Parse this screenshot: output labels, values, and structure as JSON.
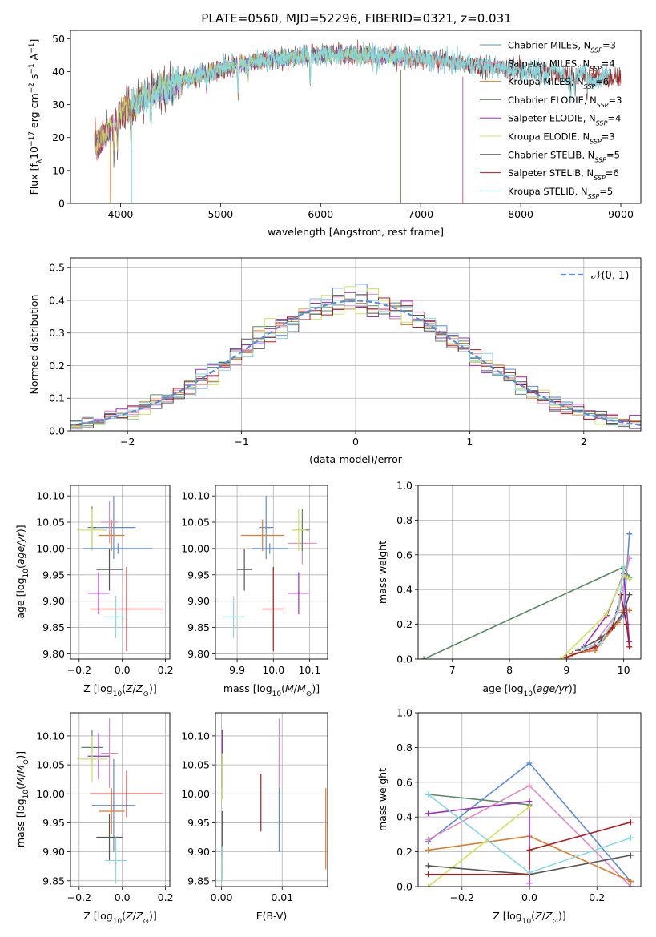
{
  "figure": {
    "title": "PLATE=0560, MJD=52296, FIBERID=0321, z=0.031"
  },
  "colors": {
    "Chabrier MILES": "#5b8bd9",
    "Salpeter MILES": "#e58ac0",
    "Kroupa MILES": "#e07b2a",
    "Chabrier ELODIE": "#5a8a62",
    "Salpeter ELODIE": "#9b2fb8",
    "Kroupa ELODIE": "#cfe25a",
    "Chabrier STELIB": "#555555",
    "Salpeter STELIB": "#b01a1a",
    "Kroupa STELIB": "#84dbe0"
  },
  "chart_data": [
    {
      "id": "spectrum",
      "type": "line",
      "xlabel": "wavelength [Angstrom, rest frame]",
      "ylabel": "Flux [f_λ10^-17 erg cm^-2 s^-1 A^-1]",
      "xlim": [
        3500,
        9200
      ],
      "ylim": [
        0,
        52.5
      ],
      "xticks": [
        4000,
        5000,
        6000,
        7000,
        8000,
        9000
      ],
      "yticks": [
        0,
        10,
        20,
        30,
        40,
        50
      ],
      "legend_position": "top-right",
      "legend": [
        {
          "model": "Chabrier MILES",
          "label": "Chabrier MILES, N",
          "sub": "SSP",
          "tail": "=3"
        },
        {
          "model": "Salpeter MILES",
          "label": "Salpeter MILES, N",
          "sub": "SSP",
          "tail": "=4"
        },
        {
          "model": "Kroupa MILES",
          "label": "Kroupa MILES, N",
          "sub": "SSP",
          "tail": "=6"
        },
        {
          "model": "Chabrier ELODIE",
          "label": "Chabrier ELODIE, N",
          "sub": "SSP",
          "tail": "=3"
        },
        {
          "model": "Salpeter ELODIE",
          "label": "Salpeter ELODIE, N",
          "sub": "SSP",
          "tail": "=4"
        },
        {
          "model": "Kroupa ELODIE",
          "label": "Kroupa ELODIE, N",
          "sub": "SSP",
          "tail": "=3"
        },
        {
          "model": "Chabrier STELIB",
          "label": "Chabrier STELIB, N",
          "sub": "SSP",
          "tail": "=5"
        },
        {
          "model": "Salpeter STELIB",
          "label": "Salpeter STELIB, N",
          "sub": "SSP",
          "tail": "=6"
        },
        {
          "model": "Kroupa STELIB",
          "label": "Kroupa STELIB, N",
          "sub": "SSP",
          "tail": "=5"
        }
      ],
      "continuum": [
        [
          3740,
          18
        ],
        [
          3800,
          20
        ],
        [
          3900,
          23
        ],
        [
          4000,
          28
        ],
        [
          4100,
          30
        ],
        [
          4300,
          33
        ],
        [
          4500,
          36
        ],
        [
          4700,
          38
        ],
        [
          5000,
          41
        ],
        [
          5300,
          43
        ],
        [
          5600,
          44
        ],
        [
          6000,
          45
        ],
        [
          6500,
          45
        ],
        [
          7000,
          44
        ],
        [
          7400,
          42.5
        ],
        [
          7800,
          41
        ],
        [
          8200,
          40
        ],
        [
          8500,
          39
        ],
        [
          8700,
          38.5
        ],
        [
          8900,
          38
        ]
      ],
      "absorption_lines": [
        [
          3934,
          12
        ],
        [
          3969,
          12
        ],
        [
          4102,
          8
        ],
        [
          4304,
          8
        ],
        [
          4861,
          5
        ],
        [
          5175,
          9
        ],
        [
          5270,
          5
        ],
        [
          5895,
          8
        ],
        [
          6563,
          3
        ],
        [
          8498,
          4
        ],
        [
          8542,
          5
        ],
        [
          8662,
          5
        ]
      ],
      "model_ranges": {
        "Chabrier MILES": [
          3740,
          7420
        ],
        "Salpeter MILES": [
          3740,
          7420
        ],
        "Kroupa MILES": [
          3740,
          7420
        ],
        "Chabrier ELODIE": [
          3740,
          6800
        ],
        "Salpeter ELODIE": [
          3740,
          6800
        ],
        "Kroupa ELODIE": [
          3740,
          6800
        ],
        "Chabrier STELIB": [
          3740,
          9000
        ],
        "Salpeter STELIB": [
          3740,
          9000
        ],
        "Kroupa STELIB": [
          4110,
          8890
        ]
      },
      "edge_drops": [
        {
          "model": "Kroupa MILES",
          "x": 7420
        },
        {
          "model": "Salpeter MILES",
          "x": 7420
        },
        {
          "model": "Kroupa ELODIE",
          "x": 6800
        },
        {
          "model": "Chabrier ELODIE",
          "x": 6800
        },
        {
          "model": "Kroupa MILES",
          "x": 3900
        },
        {
          "model": "Kroupa STELIB",
          "x": 4110
        }
      ]
    },
    {
      "id": "residuals",
      "type": "histogram",
      "xlabel": "(data-model)/error",
      "ylabel": "Normed distribution",
      "xlim": [
        -2.5,
        2.5
      ],
      "ylim": [
        0,
        0.53
      ],
      "xticks": [
        -2,
        -1,
        0,
        1,
        2
      ],
      "yticks": [
        0.0,
        0.1,
        0.2,
        0.3,
        0.4,
        0.5
      ],
      "grid": true,
      "bin_width": 0.1,
      "legend_position": "top-right",
      "legend": [
        {
          "label": "𝒩(0, 1)",
          "style": "dashed",
          "color": "#5b8bd9"
        }
      ]
    },
    {
      "id": "age-vs-Z",
      "type": "errorbar",
      "xlabel": "Z [log₁₀(Z/Z☉)]",
      "ylabel": "age  [log₁₀(age/yr)]",
      "xlim": [
        -0.24,
        0.22
      ],
      "ylim": [
        9.79,
        10.12
      ],
      "xticks": [
        -0.2,
        0.0,
        0.2
      ],
      "yticks": [
        9.8,
        9.85,
        9.9,
        9.95,
        10.0,
        10.05,
        10.1
      ],
      "grid": true,
      "points": [
        {
          "model": "Chabrier MILES",
          "x": -0.04,
          "xerr": 0.1,
          "y": 10.04,
          "yerr": 0.06
        },
        {
          "model": "Salpeter MILES",
          "x": -0.06,
          "xerr": 0.04,
          "y": 10.05,
          "yerr": 0.04
        },
        {
          "model": "Kroupa MILES",
          "x": -0.05,
          "xerr": 0.06,
          "y": 10.025,
          "yerr": 0.03
        },
        {
          "model": "Chabrier ELODIE",
          "x": -0.14,
          "xerr": 0.02,
          "y": 10.04,
          "yerr": 0.04
        },
        {
          "model": "Salpeter ELODIE",
          "x": -0.11,
          "xerr": 0.05,
          "y": 9.915,
          "yerr": 0.04
        },
        {
          "model": "Kroupa ELODIE",
          "x": -0.14,
          "xerr": 0.07,
          "y": 10.035,
          "yerr": 0.04
        },
        {
          "model": "Chabrier STELIB",
          "x": -0.06,
          "xerr": 0.06,
          "y": 9.96,
          "yerr": 0.04
        },
        {
          "model": "Salpeter STELIB",
          "x": 0.02,
          "xerr": 0.17,
          "y": 9.885,
          "yerr": 0.08
        },
        {
          "model": "Kroupa STELIB",
          "x": -0.03,
          "xerr": 0.05,
          "y": 9.87,
          "yerr": 0.04
        },
        {
          "model": "Chabrier MILES",
          "x": -0.02,
          "xerr": 0.16,
          "y": 10.0,
          "yerr": 0.01
        }
      ]
    },
    {
      "id": "age-vs-mass",
      "type": "errorbar",
      "xlabel": "mass [log₁₀(M/M☉)]",
      "ylabel": "",
      "xlim": [
        9.84,
        10.15
      ],
      "ylim": [
        9.79,
        10.12
      ],
      "xticks": [
        9.9,
        10.0,
        10.1
      ],
      "yticks": [
        9.8,
        9.85,
        9.9,
        9.95,
        10.0,
        10.05,
        10.1
      ],
      "grid": true,
      "points": [
        {
          "model": "Chabrier MILES",
          "x": 9.98,
          "xerr": 0.02,
          "y": 10.04,
          "yerr": 0.06
        },
        {
          "model": "Salpeter MILES",
          "x": 10.08,
          "xerr": 0.04,
          "y": 10.01,
          "yerr": 0.04
        },
        {
          "model": "Kroupa MILES",
          "x": 9.97,
          "xerr": 0.06,
          "y": 10.025,
          "yerr": 0.03
        },
        {
          "model": "Chabrier ELODIE",
          "x": 10.08,
          "xerr": 0.02,
          "y": 10.035,
          "yerr": 0.04
        },
        {
          "model": "Salpeter ELODIE",
          "x": 10.07,
          "xerr": 0.03,
          "y": 9.915,
          "yerr": 0.04
        },
        {
          "model": "Kroupa ELODIE",
          "x": 10.07,
          "xerr": 0.02,
          "y": 10.035,
          "yerr": 0.04
        },
        {
          "model": "Chabrier STELIB",
          "x": 9.92,
          "xerr": 0.02,
          "y": 9.96,
          "yerr": 0.04
        },
        {
          "model": "Salpeter STELIB",
          "x": 10.0,
          "xerr": 0.03,
          "y": 9.885,
          "yerr": 0.08
        },
        {
          "model": "Kroupa STELIB",
          "x": 9.89,
          "xerr": 0.03,
          "y": 9.87,
          "yerr": 0.04
        },
        {
          "model": "Chabrier MILES",
          "x": 9.99,
          "xerr": 0.05,
          "y": 10.0,
          "yerr": 0.01
        }
      ]
    },
    {
      "id": "massweight-vs-age",
      "type": "line",
      "xlabel": "age  [log₁₀(age/yr)]",
      "ylabel": "mass weight",
      "xlim": [
        6.4,
        10.3
      ],
      "ylim": [
        0,
        1.0
      ],
      "xticks": [
        7,
        8,
        9,
        10
      ],
      "yticks": [
        0.0,
        0.2,
        0.4,
        0.6,
        0.8,
        1.0
      ],
      "grid": true,
      "series": [
        {
          "model": "Chabrier MILES",
          "x": [
            9.5,
            10.0,
            10.1
          ],
          "y": [
            0.05,
            0.25,
            0.72
          ]
        },
        {
          "model": "Salpeter MILES",
          "x": [
            9.4,
            9.9,
            10.1
          ],
          "y": [
            0.05,
            0.27,
            0.58
          ]
        },
        {
          "model": "Kroupa MILES",
          "x": [
            9.1,
            9.5,
            9.9,
            10.0,
            10.1
          ],
          "y": [
            0.03,
            0.05,
            0.21,
            0.28,
            0.28
          ]
        },
        {
          "model": "Chabrier ELODIE",
          "x": [
            6.5,
            10.0,
            10.1
          ],
          "y": [
            0.0,
            0.53,
            0.47
          ]
        },
        {
          "model": "Salpeter ELODIE",
          "x": [
            9.3,
            9.7,
            10.0,
            10.1
          ],
          "y": [
            0.07,
            0.25,
            0.49,
            0.1
          ]
        },
        {
          "model": "Kroupa ELODIE",
          "x": [
            8.9,
            9.7,
            10.0,
            10.1
          ],
          "y": [
            0.0,
            0.26,
            0.48,
            0.46
          ]
        },
        {
          "model": "Chabrier STELIB",
          "x": [
            9.2,
            9.6,
            9.8,
            10.0,
            10.1
          ],
          "y": [
            0.05,
            0.12,
            0.18,
            0.27,
            0.37
          ]
        },
        {
          "model": "Salpeter STELIB",
          "x": [
            9.0,
            9.5,
            9.8,
            9.95,
            10.05,
            10.1
          ],
          "y": [
            0.01,
            0.07,
            0.18,
            0.37,
            0.2,
            0.07
          ]
        },
        {
          "model": "Kroupa STELIB",
          "x": [
            9.3,
            9.6,
            9.9,
            10.0
          ],
          "y": [
            0.06,
            0.09,
            0.28,
            0.53
          ]
        }
      ]
    },
    {
      "id": "mass-vs-Z",
      "type": "errorbar",
      "xlabel": "Z [log₁₀(Z/Z☉)]",
      "ylabel": "mass [log₁₀(M/M☉)]",
      "xlim": [
        -0.24,
        0.22
      ],
      "ylim": [
        9.84,
        10.14
      ],
      "xticks": [
        -0.2,
        0.0,
        0.2
      ],
      "yticks": [
        9.85,
        9.9,
        9.95,
        10.0,
        10.05,
        10.1
      ],
      "grid": true,
      "points": [
        {
          "model": "Chabrier MILES",
          "x": -0.04,
          "xerr": 0.1,
          "y": 9.98,
          "yerr": 0.08
        },
        {
          "model": "Salpeter MILES",
          "x": -0.06,
          "xerr": 0.04,
          "y": 10.07,
          "yerr": 0.06
        },
        {
          "model": "Kroupa MILES",
          "x": -0.05,
          "xerr": 0.06,
          "y": 9.97,
          "yerr": 0.04
        },
        {
          "model": "Chabrier ELODIE",
          "x": -0.14,
          "xerr": 0.05,
          "y": 10.08,
          "yerr": 0.03
        },
        {
          "model": "Salpeter ELODIE",
          "x": -0.11,
          "xerr": 0.05,
          "y": 10.065,
          "yerr": 0.04
        },
        {
          "model": "Kroupa ELODIE",
          "x": -0.14,
          "xerr": 0.07,
          "y": 10.06,
          "yerr": 0.04
        },
        {
          "model": "Chabrier STELIB",
          "x": -0.06,
          "xerr": 0.06,
          "y": 9.925,
          "yerr": 0.04
        },
        {
          "model": "Salpeter STELIB",
          "x": 0.02,
          "xerr": 0.17,
          "y": 10.0,
          "yerr": 0.04
        },
        {
          "model": "Kroupa STELIB",
          "x": -0.03,
          "xerr": 0.05,
          "y": 9.885,
          "yerr": 0.04
        }
      ]
    },
    {
      "id": "mass-vs-EBV",
      "type": "errorbar",
      "xlabel": "E(B-V)",
      "ylabel": "",
      "xlim": [
        -0.001,
        0.0175
      ],
      "ylim": [
        9.84,
        10.14
      ],
      "xticks": [
        0.0,
        0.01
      ],
      "yticks": [
        9.85,
        9.9,
        9.95,
        10.0,
        10.05,
        10.1
      ],
      "grid": true,
      "points": [
        {
          "model": "Chabrier MILES",
          "x": 0.0095,
          "xerr": 0.0,
          "y": 9.98,
          "yerr": 0.08
        },
        {
          "model": "Salpeter MILES",
          "x": 0.0095,
          "xerr": 0.0,
          "y": 10.07,
          "yerr": 0.06
        },
        {
          "model": "Kroupa MILES",
          "x": 0.0172,
          "xerr": 0.0,
          "y": 9.94,
          "yerr": 0.07
        },
        {
          "model": "Chabrier ELODIE",
          "x": 0.0001,
          "xerr": 0.0,
          "y": 10.08,
          "yerr": 0.03
        },
        {
          "model": "Salpeter ELODIE",
          "x": 0.0001,
          "xerr": 0.0,
          "y": 10.06,
          "yerr": 0.05
        },
        {
          "model": "Kroupa ELODIE",
          "x": 0.0001,
          "xerr": 0.0,
          "y": 10.03,
          "yerr": 0.04
        },
        {
          "model": "Chabrier STELIB",
          "x": 0.0001,
          "xerr": 0.0,
          "y": 9.93,
          "yerr": 0.04
        },
        {
          "model": "Salpeter STELIB",
          "x": 0.0065,
          "xerr": 0.0,
          "y": 9.985,
          "yerr": 0.05
        },
        {
          "model": "Kroupa STELIB",
          "x": 0.0001,
          "xerr": 0.0,
          "y": 9.88,
          "yerr": 0.03
        }
      ]
    },
    {
      "id": "massweight-vs-Z",
      "type": "line",
      "xlabel": "Z [log₁₀(Z/Z☉)]",
      "ylabel": "mass weight",
      "xlim": [
        -0.33,
        0.33
      ],
      "ylim": [
        0,
        1.0
      ],
      "xticks": [
        -0.2,
        0.0,
        0.2
      ],
      "yticks": [
        0.0,
        0.2,
        0.4,
        0.6,
        0.8,
        1.0
      ],
      "grid": true,
      "series": [
        {
          "model": "Chabrier MILES",
          "x": [
            -0.3,
            0.0,
            0.3
          ],
          "y": [
            0.26,
            0.71,
            0.03
          ]
        },
        {
          "model": "Salpeter MILES",
          "x": [
            -0.3,
            0.0,
            0.3
          ],
          "y": [
            0.27,
            0.58,
            0.0
          ]
        },
        {
          "model": "Kroupa MILES",
          "x": [
            -0.3,
            0.0,
            0.3
          ],
          "y": [
            0.21,
            0.29,
            0.03
          ]
        },
        {
          "model": "Chabrier ELODIE",
          "x": [
            -0.3,
            0.0
          ],
          "y": [
            0.53,
            0.47
          ]
        },
        {
          "model": "Salpeter ELODIE",
          "x": [
            -0.3,
            0.0,
            0.0
          ],
          "y": [
            0.42,
            0.49,
            0.02
          ]
        },
        {
          "model": "Kroupa ELODIE",
          "x": [
            -0.3,
            0.0
          ],
          "y": [
            0.0,
            0.46
          ]
        },
        {
          "model": "Chabrier STELIB",
          "x": [
            -0.3,
            0.0,
            0.3
          ],
          "y": [
            0.12,
            0.07,
            0.18
          ]
        },
        {
          "model": "Salpeter STELIB",
          "x": [
            -0.3,
            0.0,
            0.0,
            0.3
          ],
          "y": [
            0.07,
            0.07,
            0.21,
            0.37
          ]
        },
        {
          "model": "Kroupa STELIB",
          "x": [
            -0.3,
            0.0,
            0.3
          ],
          "y": [
            0.53,
            0.08,
            0.28
          ]
        }
      ]
    }
  ]
}
